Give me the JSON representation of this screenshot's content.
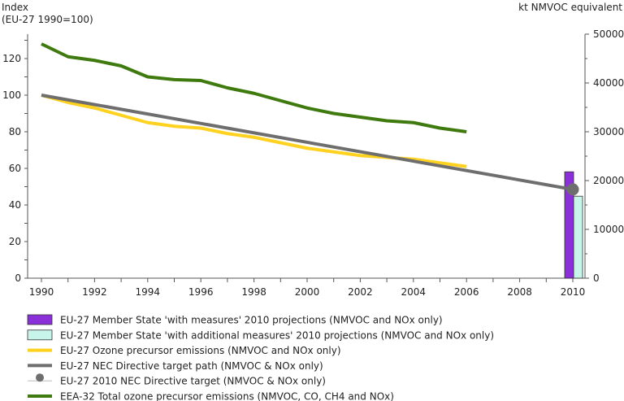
{
  "chart_data": {
    "type": "line",
    "left_axis": {
      "title_line1": "Index",
      "title_line2": "(EU-27 1990=100)",
      "ylim": [
        0,
        130
      ],
      "ticks": [
        0,
        20,
        40,
        60,
        80,
        100,
        120
      ],
      "tick_labels": [
        "0",
        "20",
        "40",
        "60",
        "80",
        "100",
        "120"
      ]
    },
    "right_axis": {
      "title": "kt NMVOC equivalent",
      "ylim": [
        0,
        50000
      ],
      "ticks": [
        0,
        10000,
        20000,
        30000,
        40000,
        50000
      ],
      "tick_labels": [
        "0",
        "10000",
        "20000",
        "30000",
        "40000",
        "50000"
      ]
    },
    "x_axis": {
      "ticks": [
        1990,
        1992,
        1994,
        1996,
        1998,
        2000,
        2002,
        2004,
        2006,
        2008,
        2010
      ],
      "tick_labels": [
        "1990",
        "1992",
        "1994",
        "1996",
        "1998",
        "2000",
        "2002",
        "2004",
        "2006",
        "2008",
        "2010"
      ]
    },
    "series": [
      {
        "name": "EU-27 Ozone precursor emissions (NMVOC and NOx only)",
        "axis": "left",
        "kind": "line",
        "color": "#ffd21f",
        "x": [
          1990,
          1991,
          1992,
          1993,
          1994,
          1995,
          1996,
          1997,
          1998,
          1999,
          2000,
          2001,
          2002,
          2003,
          2004,
          2005,
          2006
        ],
        "values": [
          100,
          96,
          93,
          89,
          85,
          83,
          82,
          79,
          77,
          74,
          71,
          69,
          67,
          66,
          65,
          63,
          61
        ]
      },
      {
        "name": "EU-27 NEC Directive target path (NMVOC & NOx only)",
        "axis": "left",
        "kind": "line",
        "color": "#6e6e6e",
        "x": [
          1990,
          2010
        ],
        "values": [
          100,
          48.5
        ]
      },
      {
        "name": "EEA-32 Total ozone precursor emissions (NMVOC, CO, CH4 and NOx)",
        "axis": "left",
        "kind": "line",
        "color": "#3e7a0e",
        "x": [
          1990,
          1991,
          1992,
          1993,
          1994,
          1995,
          1996,
          1997,
          1998,
          1999,
          2000,
          2001,
          2002,
          2003,
          2004,
          2005,
          2006
        ],
        "values": [
          128,
          121,
          119,
          116,
          110,
          108.5,
          108,
          104,
          101,
          97,
          93,
          90,
          88,
          86,
          85,
          82,
          80
        ]
      },
      {
        "name": "EU-27 Member State 'with measures' 2010 projections (NMVOC and NOx only)",
        "axis": "right",
        "kind": "bar",
        "color": "#8b2fd8",
        "x": [
          2010
        ],
        "values": [
          21800
        ],
        "offset": -1
      },
      {
        "name": "EU-27 Member State 'with additional measures' 2010 projections (NMVOC and NOx only)",
        "axis": "right",
        "kind": "bar",
        "color": "#c8f5ea",
        "x": [
          2010
        ],
        "values": [
          16800
        ],
        "offset": 1
      },
      {
        "name": "EU-27 2010 NEC Directive target (NMVOC & NOx only)",
        "axis": "left",
        "kind": "marker",
        "color": "#6e6e6e",
        "x": [
          2010
        ],
        "values": [
          48.5
        ]
      }
    ],
    "legend": {
      "placement": "bottom",
      "items": [
        {
          "label": "EU-27 Member State 'with measures' 2010 projections (NMVOC and NOx only)",
          "symbol": "bar",
          "color": "#8b2fd8"
        },
        {
          "label": "EU-27 Member State 'with additional measures' 2010 projections (NMVOC and NOx only)",
          "symbol": "bar",
          "color": "#c8f5ea"
        },
        {
          "label": "EU-27 Ozone precursor emissions (NMVOC and NOx only)",
          "symbol": "line",
          "color": "#ffd21f"
        },
        {
          "label": "EU-27 NEC Directive target path (NMVOC & NOx only)",
          "symbol": "line",
          "color": "#6e6e6e"
        },
        {
          "label": "EU-27 2010 NEC Directive target (NMVOC & NOx only)",
          "symbol": "marker",
          "color": "#6e6e6e"
        },
        {
          "label": "EEA-32 Total ozone precursor emissions (NMVOC, CO, CH4 and NOx)",
          "symbol": "line",
          "color": "#3e7a0e"
        }
      ]
    }
  }
}
